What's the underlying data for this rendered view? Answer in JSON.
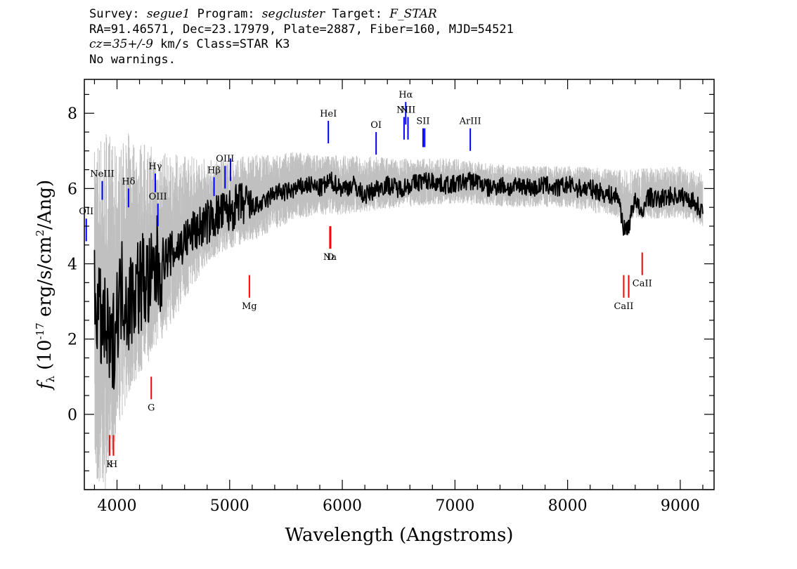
{
  "header": {
    "survey_label": "Survey:",
    "survey": "segue1",
    "program_label": "Program:",
    "program": "segcluster",
    "target_label": "Target:",
    "target": "F_STAR",
    "line2": "RA=91.46571, Dec=23.17979, Plate=2887, Fiber=160, MJD=54521",
    "cz_label": "cz=35+/-9",
    "cz_units": "km/s",
    "class_text": "Class=STAR K3",
    "warnings": "No warnings."
  },
  "chart_data": {
    "type": "line",
    "xlabel": "Wavelength (Angstroms)",
    "ylabel": "f_λ (10^-17 erg/s/cm^2/Ang)",
    "xlim": [
      3710,
      9300
    ],
    "ylim": [
      -2.0,
      8.9
    ],
    "xticks": [
      4000,
      5000,
      6000,
      7000,
      8000,
      9000
    ],
    "yticks": [
      0,
      2,
      4,
      6,
      8
    ],
    "series": [
      {
        "role": "flux",
        "color": "#000000",
        "x": [
          3800,
          3850,
          3900,
          3950,
          4000,
          4050,
          4100,
          4150,
          4200,
          4250,
          4300,
          4350,
          4400,
          4450,
          4500,
          4600,
          4700,
          4800,
          4900,
          5000,
          5100,
          5200,
          5300,
          5400,
          5500,
          5600,
          5700,
          5800,
          5900,
          6000,
          6100,
          6200,
          6300,
          6400,
          6500,
          6600,
          6700,
          6800,
          6900,
          7000,
          7100,
          7200,
          7300,
          7400,
          7500,
          7600,
          7700,
          7800,
          7900,
          8000,
          8100,
          8200,
          8300,
          8400,
          8450,
          8500,
          8542,
          8600,
          8662,
          8700,
          8800,
          8900,
          9000,
          9100,
          9200
        ],
        "y": [
          3.3,
          2.5,
          2.2,
          1.5,
          2.8,
          3.4,
          2.9,
          3.3,
          3.5,
          3.6,
          3.4,
          3.9,
          4.1,
          4.2,
          4.3,
          4.6,
          4.9,
          5.1,
          5.3,
          5.4,
          5.6,
          5.5,
          5.6,
          5.9,
          5.9,
          6.0,
          6.1,
          6.0,
          6.2,
          6.0,
          6.1,
          5.8,
          6.0,
          6.1,
          6.0,
          6.1,
          6.2,
          6.2,
          6.1,
          6.1,
          6.2,
          6.2,
          6.0,
          6.1,
          6.0,
          6.1,
          6.0,
          6.1,
          6.0,
          6.1,
          6.0,
          6.0,
          5.9,
          5.8,
          5.8,
          4.9,
          5.0,
          5.8,
          5.2,
          5.8,
          5.7,
          5.8,
          5.8,
          5.7,
          5.4
        ]
      },
      {
        "role": "noise envelope",
        "color": "#c0c0c0",
        "x": [
          3800,
          3900,
          4000,
          4100,
          4200,
          4300,
          4400,
          4500,
          4600,
          4700,
          4800,
          4900,
          5000,
          5200,
          5400,
          5600,
          5800,
          6000,
          6500,
          7000,
          7500,
          8000,
          8500,
          9000,
          9200
        ],
        "ylow": [
          -2.0,
          -2.0,
          -0.5,
          0.5,
          1.0,
          1.5,
          2.0,
          2.5,
          3.0,
          3.5,
          4.0,
          4.2,
          4.4,
          4.6,
          4.9,
          5.2,
          5.3,
          5.3,
          5.5,
          5.6,
          5.5,
          5.5,
          5.2,
          5.2,
          5.0
        ],
        "yhigh": [
          7.2,
          7.8,
          7.0,
          7.5,
          7.3,
          7.2,
          7.0,
          6.9,
          6.9,
          6.9,
          6.8,
          6.8,
          6.8,
          6.9,
          6.9,
          7.0,
          6.9,
          6.9,
          6.8,
          6.8,
          6.6,
          6.6,
          6.5,
          6.6,
          6.4
        ]
      }
    ],
    "emission_lines": [
      {
        "label": "OII",
        "x": 3727,
        "y0": 4.6,
        "y1": 5.2
      },
      {
        "label": "NeIII",
        "x": 3869,
        "y0": 5.7,
        "y1": 6.2
      },
      {
        "label": "Hδ",
        "x": 4102,
        "y0": 5.5,
        "y1": 6.0
      },
      {
        "label": "Hγ",
        "x": 4340,
        "y0": 5.9,
        "y1": 6.4
      },
      {
        "label": "OIII",
        "x": 4363,
        "y0": 5.0,
        "y1": 5.6
      },
      {
        "label": "Hβ",
        "x": 4861,
        "y0": 5.8,
        "y1": 6.3
      },
      {
        "label": "OIII",
        "x": 4959,
        "y0": 6.0,
        "y1": 6.6
      },
      {
        "label": "OIII",
        "x": 5007,
        "y0": 6.2,
        "y1": 6.8
      },
      {
        "label": "HeI",
        "x": 5876,
        "y0": 7.2,
        "y1": 7.8
      },
      {
        "label": "OI",
        "x": 6300,
        "y0": 6.9,
        "y1": 7.5
      },
      {
        "label": "NII",
        "x": 6548,
        "y0": 7.3,
        "y1": 7.9
      },
      {
        "label": "Hα",
        "x": 6563,
        "y0": 7.7,
        "y1": 8.3
      },
      {
        "label": "NII",
        "x": 6583,
        "y0": 7.3,
        "y1": 7.9
      },
      {
        "label": "SII",
        "x": 6717,
        "y0": 7.1,
        "y1": 7.6
      },
      {
        "label": "SII",
        "x": 6731,
        "y0": 7.1,
        "y1": 7.6
      },
      {
        "label": "ArIII",
        "x": 7136,
        "y0": 7.0,
        "y1": 7.6
      }
    ],
    "absorption_lines": [
      {
        "label": "K",
        "x": 3934,
        "y0": -1.1,
        "y1": -0.55
      },
      {
        "label": "H",
        "x": 3969,
        "y0": -1.1,
        "y1": -0.55
      },
      {
        "label": "G",
        "x": 4304,
        "y0": 0.4,
        "y1": 1.0
      },
      {
        "label": "Mg",
        "x": 5175,
        "y0": 3.1,
        "y1": 3.7
      },
      {
        "label": "Na",
        "x": 5890,
        "y0": 4.4,
        "y1": 5.0
      },
      {
        "label": "D",
        "x": 5896,
        "y0": 4.4,
        "y1": 5.0
      },
      {
        "label": "CaII",
        "x": 8498,
        "y0": 3.1,
        "y1": 3.7
      },
      {
        "label": "CaII",
        "x": 8542,
        "y0": 3.1,
        "y1": 3.7
      },
      {
        "label": "CaII",
        "x": 8662,
        "y0": 3.7,
        "y1": 4.3
      }
    ],
    "colors": {
      "emission": "#0000ff",
      "absorption": "#ff0000",
      "flux": "#000000",
      "noise": "#c0c0c0"
    }
  }
}
